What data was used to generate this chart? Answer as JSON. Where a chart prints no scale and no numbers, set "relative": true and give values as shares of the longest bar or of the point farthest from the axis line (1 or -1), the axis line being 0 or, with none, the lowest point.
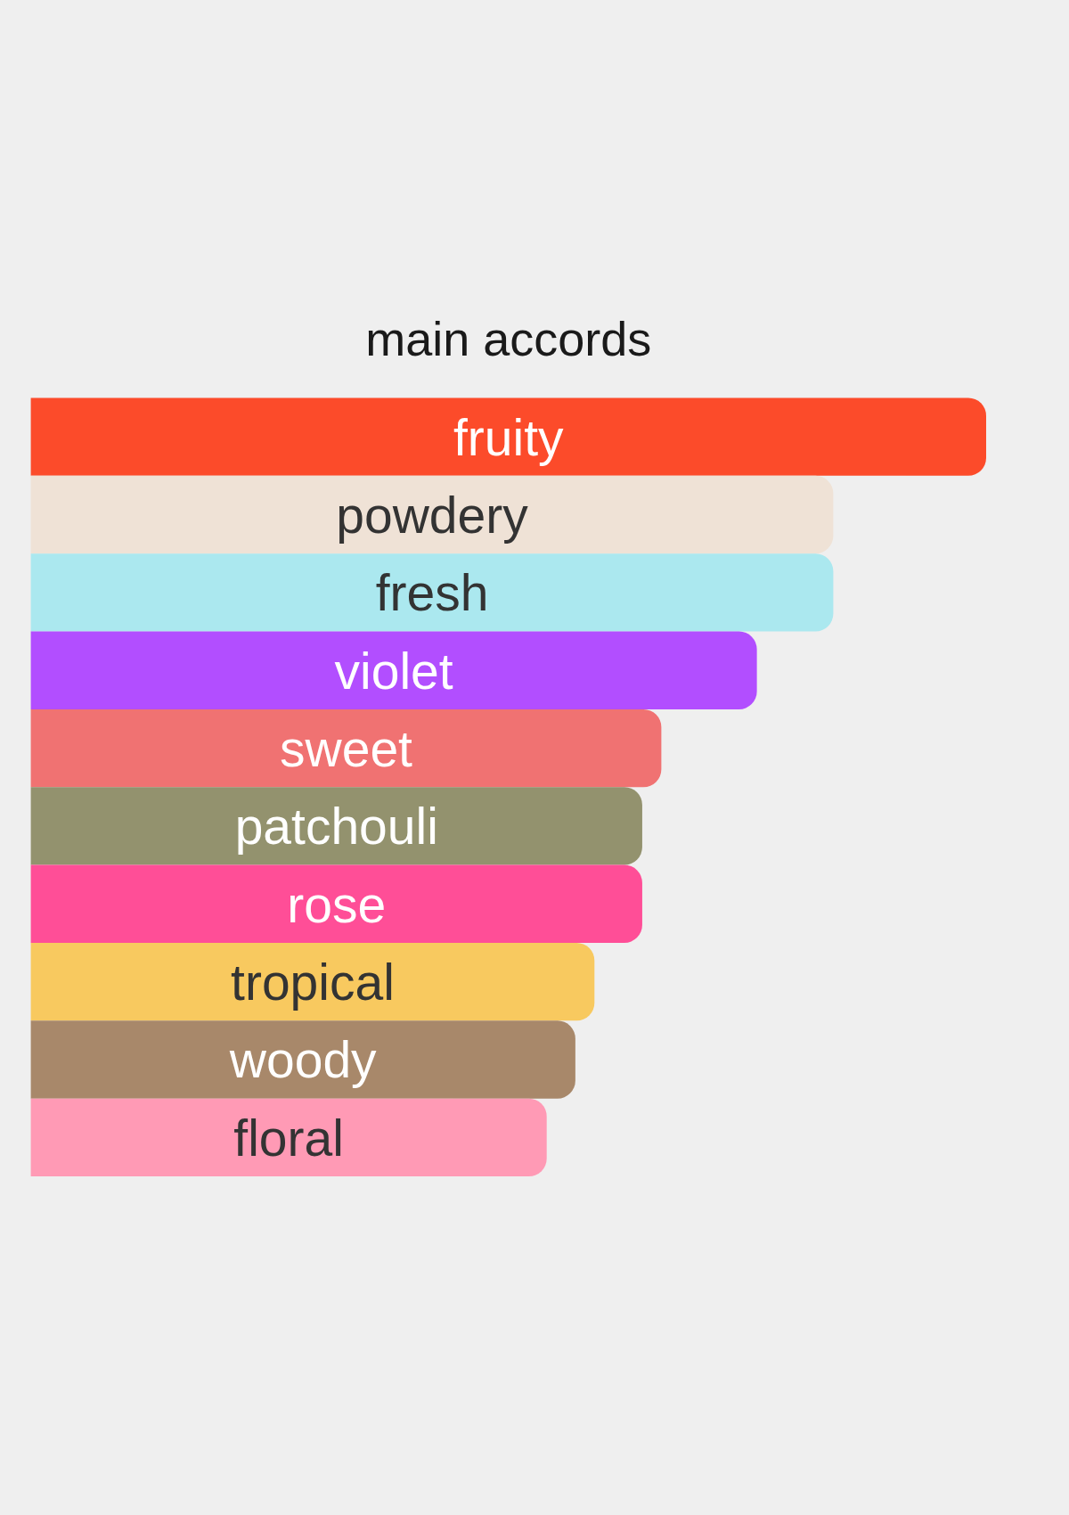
{
  "chart_data": {
    "type": "bar",
    "orientation": "horizontal",
    "relative": true,
    "title": "main accords",
    "categories": [
      "fruity",
      "powdery",
      "fresh",
      "violet",
      "sweet",
      "patchouli",
      "rose",
      "tropical",
      "woody",
      "floral"
    ],
    "values": [
      1,
      0.84,
      0.84,
      0.76,
      0.66,
      0.64,
      0.64,
      0.59,
      0.57,
      0.54
    ],
    "colors": [
      "#fc4b2a",
      "#efe2d6",
      "#abe8ef",
      "#b24eff",
      "#f07272",
      "#93926e",
      "#ff4e97",
      "#f8c95f",
      "#a8886a",
      "#ff9ab5"
    ]
  }
}
